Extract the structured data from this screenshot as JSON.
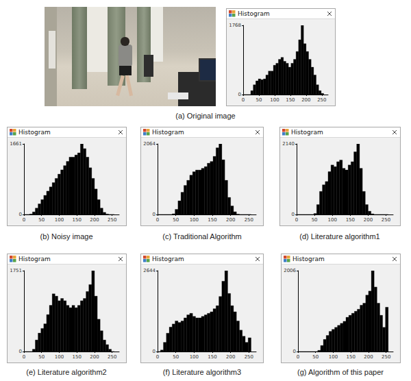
{
  "chart_data": [
    {
      "type": "histogram",
      "title": "Histogram",
      "caption": "(a) Original image",
      "color": "#000000",
      "bins": [
        0,
        8,
        16,
        24,
        32,
        40,
        48,
        56,
        64,
        72,
        80,
        88,
        96,
        104,
        112,
        120,
        128,
        136,
        144,
        152,
        160,
        168,
        176,
        184,
        192,
        200,
        208,
        216,
        224,
        232,
        240,
        248,
        256
      ],
      "counts": [
        0,
        0,
        0,
        100,
        250,
        350,
        400,
        380,
        400,
        500,
        600,
        600,
        750,
        800,
        900,
        950,
        850,
        800,
        700,
        800,
        900,
        1100,
        1400,
        1768,
        1300,
        1100,
        900,
        700,
        500,
        250,
        100,
        30
      ],
      "xlim": [
        0,
        270
      ],
      "xticks": [
        0,
        50,
        100,
        150,
        200,
        250
      ],
      "ylim": [
        0,
        1768
      ],
      "yticks": [
        0,
        1768
      ],
      "grid": false
    },
    {
      "type": "histogram",
      "title": "Histogram",
      "caption": "(b) Noisy image",
      "color": "#000000",
      "bins": [
        0,
        8,
        16,
        24,
        32,
        40,
        48,
        56,
        64,
        72,
        80,
        88,
        96,
        104,
        112,
        120,
        128,
        136,
        144,
        152,
        160,
        168,
        176,
        184,
        192,
        200,
        208,
        216,
        224,
        232,
        240,
        248,
        256
      ],
      "counts": [
        0,
        0,
        10,
        60,
        150,
        250,
        350,
        450,
        550,
        650,
        750,
        850,
        950,
        1050,
        1150,
        1250,
        1350,
        1350,
        1400,
        1450,
        1661,
        1550,
        1350,
        1100,
        850,
        600,
        350,
        150,
        50,
        10,
        0,
        0
      ],
      "xlim": [
        0,
        270
      ],
      "xticks": [
        0,
        50,
        100,
        150,
        200,
        250
      ],
      "ylim": [
        0,
        1661
      ],
      "yticks": [
        0,
        1661
      ],
      "grid": false
    },
    {
      "type": "histogram",
      "title": "Histogram",
      "caption": "(c) Traditional Algorithm",
      "color": "#000000",
      "bins": [
        0,
        8,
        16,
        24,
        32,
        40,
        48,
        56,
        64,
        72,
        80,
        88,
        96,
        104,
        112,
        120,
        128,
        136,
        144,
        152,
        160,
        168,
        176,
        184,
        192,
        200,
        208,
        216,
        224,
        232,
        240,
        248,
        256
      ],
      "counts": [
        0,
        0,
        0,
        0,
        0,
        20,
        150,
        400,
        650,
        850,
        1000,
        1150,
        1250,
        1300,
        1300,
        1350,
        1400,
        1500,
        1550,
        1700,
        1950,
        2064,
        1600,
        1000,
        500,
        250,
        80,
        10,
        0,
        0,
        0,
        0
      ],
      "xlim": [
        0,
        270
      ],
      "xticks": [
        0,
        50,
        100,
        150,
        200,
        250
      ],
      "ylim": [
        0,
        2064
      ],
      "yticks": [
        0,
        2064
      ],
      "grid": false
    },
    {
      "type": "histogram",
      "title": "Histogram",
      "caption": "(d) Literature algorithm1",
      "color": "#000000",
      "bins": [
        0,
        8,
        16,
        24,
        32,
        40,
        48,
        56,
        64,
        72,
        80,
        88,
        96,
        104,
        112,
        120,
        128,
        136,
        144,
        152,
        160,
        168,
        176,
        184,
        192,
        200,
        208,
        216,
        224,
        232,
        240,
        248,
        256
      ],
      "counts": [
        0,
        0,
        0,
        0,
        0,
        0,
        30,
        300,
        700,
        900,
        1000,
        1300,
        1500,
        1450,
        1600,
        1650,
        1400,
        1350,
        1500,
        1600,
        1900,
        2140,
        1400,
        700,
        300,
        100,
        20,
        0,
        0,
        0,
        0,
        0
      ],
      "xlim": [
        0,
        270
      ],
      "xticks": [
        0,
        50,
        100,
        150,
        200,
        250
      ],
      "ylim": [
        0,
        2140
      ],
      "yticks": [
        0,
        2140
      ],
      "grid": false
    },
    {
      "type": "histogram",
      "title": "Histogram",
      "caption": "(e) Literature algorithm2",
      "color": "#000000",
      "bins": [
        0,
        8,
        16,
        24,
        32,
        40,
        48,
        56,
        64,
        72,
        80,
        88,
        96,
        104,
        112,
        120,
        128,
        136,
        144,
        152,
        160,
        168,
        176,
        184,
        192,
        200,
        208,
        216,
        224,
        232,
        240,
        248,
        256
      ],
      "counts": [
        0,
        0,
        0,
        50,
        250,
        400,
        500,
        600,
        800,
        1000,
        1250,
        1200,
        1100,
        1150,
        1100,
        1000,
        950,
        1000,
        950,
        1000,
        1100,
        1150,
        1300,
        1450,
        1751,
        1200,
        700,
        450,
        250,
        150,
        50,
        0
      ],
      "xlim": [
        0,
        270
      ],
      "xticks": [
        0,
        50,
        100,
        150,
        200,
        250
      ],
      "ylim": [
        0,
        1751
      ],
      "yticks": [
        0,
        1751
      ],
      "grid": false
    },
    {
      "type": "histogram",
      "title": "Histogram",
      "caption": "(f) Literature algorithm3",
      "color": "#000000",
      "bins": [
        0,
        8,
        16,
        24,
        32,
        40,
        48,
        56,
        64,
        72,
        80,
        88,
        96,
        104,
        112,
        120,
        128,
        136,
        144,
        152,
        160,
        168,
        176,
        184,
        192,
        200,
        208,
        216,
        224,
        232,
        240,
        248,
        256
      ],
      "counts": [
        0,
        50,
        300,
        600,
        800,
        900,
        1000,
        950,
        1000,
        1100,
        1200,
        1250,
        1150,
        1100,
        1100,
        1150,
        1200,
        1250,
        1300,
        1400,
        1500,
        1800,
        2300,
        2644,
        1900,
        1500,
        1300,
        1000,
        700,
        500,
        300,
        450
      ],
      "xlim": [
        0,
        270
      ],
      "xticks": [
        0,
        50,
        100,
        150,
        200,
        250
      ],
      "ylim": [
        0,
        2644
      ],
      "yticks": [
        0,
        2644
      ],
      "grid": false
    },
    {
      "type": "histogram",
      "title": "Histogram",
      "caption": "(g) Algorithm of this paper",
      "color": "#000000",
      "bins": [
        0,
        8,
        16,
        24,
        32,
        40,
        48,
        56,
        64,
        72,
        80,
        88,
        96,
        104,
        112,
        120,
        128,
        136,
        144,
        152,
        160,
        168,
        176,
        184,
        192,
        200,
        208,
        216,
        224,
        232,
        240,
        248,
        256
      ],
      "counts": [
        0,
        0,
        0,
        0,
        0,
        0,
        0,
        30,
        150,
        300,
        400,
        500,
        550,
        600,
        650,
        700,
        750,
        850,
        900,
        950,
        1000,
        1050,
        1150,
        1200,
        1400,
        1500,
        2006,
        1600,
        1200,
        900,
        600,
        1100
      ],
      "xlim": [
        0,
        270
      ],
      "xticks": [
        0,
        50,
        100,
        150,
        200,
        250
      ],
      "ylim": [
        0,
        2006
      ],
      "yticks": [
        0,
        2006
      ],
      "grid": false
    }
  ]
}
